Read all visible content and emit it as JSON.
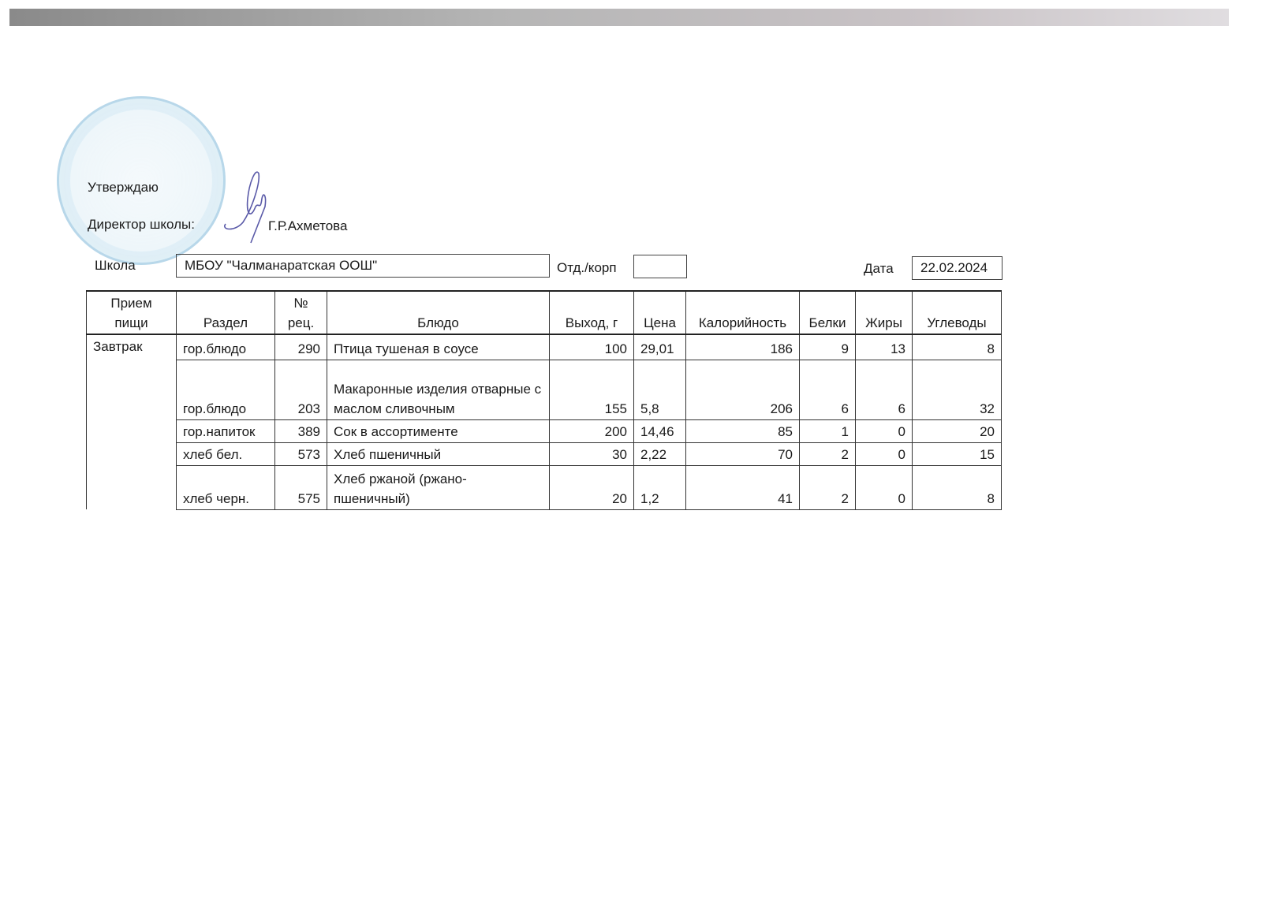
{
  "header": {
    "approve_label": "Утверждаю",
    "director_label": "Директор школы:",
    "director_name": "Г.Р.Ахметова",
    "school_label": "Школа",
    "school_value": "МБОУ \"Чалманаратская ООШ\"",
    "dept_label": "Отд./корп",
    "dept_value": "",
    "date_label": "Дата",
    "date_value": "22.02.2024"
  },
  "stamp": {
    "color": "#8cc3dd"
  },
  "signature": {
    "color": "#5a5aa8"
  },
  "table": {
    "columns": [
      "Прием пищи",
      "Раздел",
      "№ рец.",
      "Блюдо",
      "Выход, г",
      "Цена",
      "Калорийность",
      "Белки",
      "Жиры",
      "Углеводы"
    ],
    "meal": "Завтрак",
    "rows": [
      {
        "section": "гор.блюдо",
        "rec": "290",
        "dish": "Птица тушеная в соусе",
        "yield": "100",
        "price": "29,01",
        "kcal": "186",
        "protein": "9",
        "fat": "13",
        "carbs": "8"
      },
      {
        "section": "гор.блюдо",
        "rec": "203",
        "dish": "Макаронные изделия отварные с маслом сливочным",
        "yield": "155",
        "price": "5,8",
        "kcal": "206",
        "protein": "6",
        "fat": "6",
        "carbs": "32"
      },
      {
        "section": "гор.напиток",
        "rec": "389",
        "dish": "Сок в ассортименте",
        "yield": "200",
        "price": "14,46",
        "kcal": "85",
        "protein": "1",
        "fat": "0",
        "carbs": "20"
      },
      {
        "section": "хлеб бел.",
        "rec": "573",
        "dish": "Хлеб пшеничный",
        "yield": "30",
        "price": "2,22",
        "kcal": "70",
        "protein": "2",
        "fat": "0",
        "carbs": "15"
      },
      {
        "section": "хлеб черн.",
        "rec": "575",
        "dish": "Хлеб ржаной (ржано-пшеничный)",
        "yield": "20",
        "price": "1,2",
        "kcal": "41",
        "protein": "2",
        "fat": "0",
        "carbs": "8"
      }
    ]
  }
}
